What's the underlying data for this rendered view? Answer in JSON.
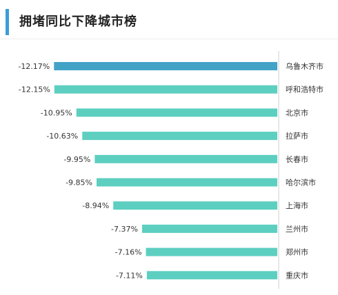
{
  "header": {
    "title": "拥堵同比下降城市榜"
  },
  "colors": {
    "accent": "#3d9bd8",
    "highlight_bar": "#42a3c7",
    "bar": "#5dcfc0",
    "divider": "#cfcfcf"
  },
  "chart_data": {
    "type": "bar",
    "orientation": "horizontal",
    "title": "拥堵同比下降城市榜",
    "categories": [
      "乌鲁木齐市",
      "呼和浩特市",
      "北京市",
      "拉萨市",
      "长春市",
      "哈尔滨市",
      "上海市",
      "兰州市",
      "郑州市",
      "重庆市"
    ],
    "values": [
      -12.17,
      -12.15,
      -10.95,
      -10.63,
      -9.95,
      -9.85,
      -8.94,
      -7.37,
      -7.16,
      -7.11
    ],
    "value_labels": [
      "-12.17%",
      "-12.15%",
      "-10.95%",
      "-10.63%",
      "-9.95%",
      "-9.85%",
      "-8.94%",
      "-7.37%",
      "-7.16%",
      "-7.11%"
    ],
    "unit": "%",
    "highlight_index": 0,
    "grid": false,
    "legend": "none"
  }
}
